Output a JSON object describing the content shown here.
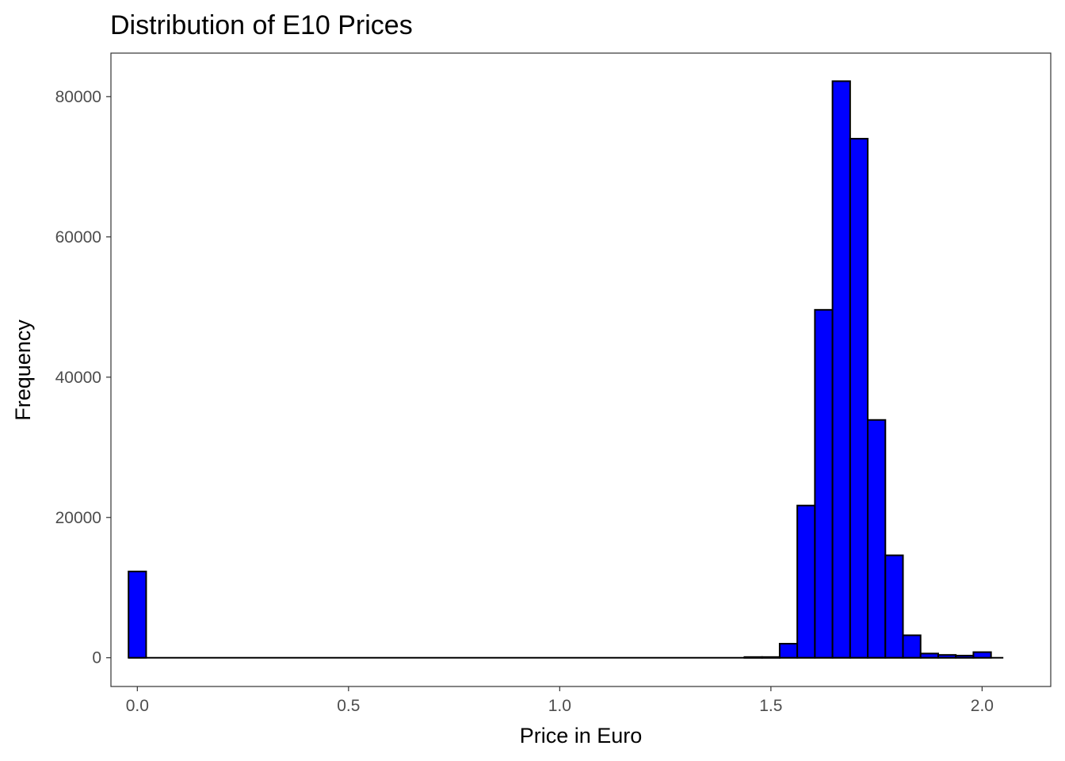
{
  "chart_data": {
    "type": "bar",
    "title": "Distribution of E10 Prices",
    "xlabel": "Price in Euro",
    "ylabel": "Frequency",
    "xlim": [
      -0.0625,
      2.1625
    ],
    "ylim": [
      -4100,
      86200
    ],
    "x_ticks": [
      0.0,
      0.5,
      1.0,
      1.5,
      2.0
    ],
    "x_tick_labels": [
      "0.0",
      "0.5",
      "1.0",
      "1.5",
      "2.0"
    ],
    "y_ticks": [
      0,
      20000,
      40000,
      60000,
      80000
    ],
    "y_tick_labels": [
      "0",
      "20000",
      "40000",
      "60000",
      "80000"
    ],
    "bin_width": 0.0417,
    "bins": [
      {
        "x": 0.0,
        "count": 12300
      },
      {
        "x": 1.4582,
        "count": 100
      },
      {
        "x": 1.4999,
        "count": 100
      },
      {
        "x": 1.5416,
        "count": 2000
      },
      {
        "x": 1.5833,
        "count": 21700
      },
      {
        "x": 1.625,
        "count": 49600
      },
      {
        "x": 1.6667,
        "count": 82200
      },
      {
        "x": 1.7084,
        "count": 74000
      },
      {
        "x": 1.7501,
        "count": 33900
      },
      {
        "x": 1.7918,
        "count": 14600
      },
      {
        "x": 1.8335,
        "count": 3200
      },
      {
        "x": 1.8752,
        "count": 600
      },
      {
        "x": 1.9169,
        "count": 400
      },
      {
        "x": 1.9586,
        "count": 300
      },
      {
        "x": 2.0003,
        "count": 800
      }
    ],
    "baseline_range": [
      -0.0208,
      2.0503
    ],
    "fill_color": "#0000ff",
    "edge_color": "#000000",
    "grid": false,
    "legend": "none"
  }
}
